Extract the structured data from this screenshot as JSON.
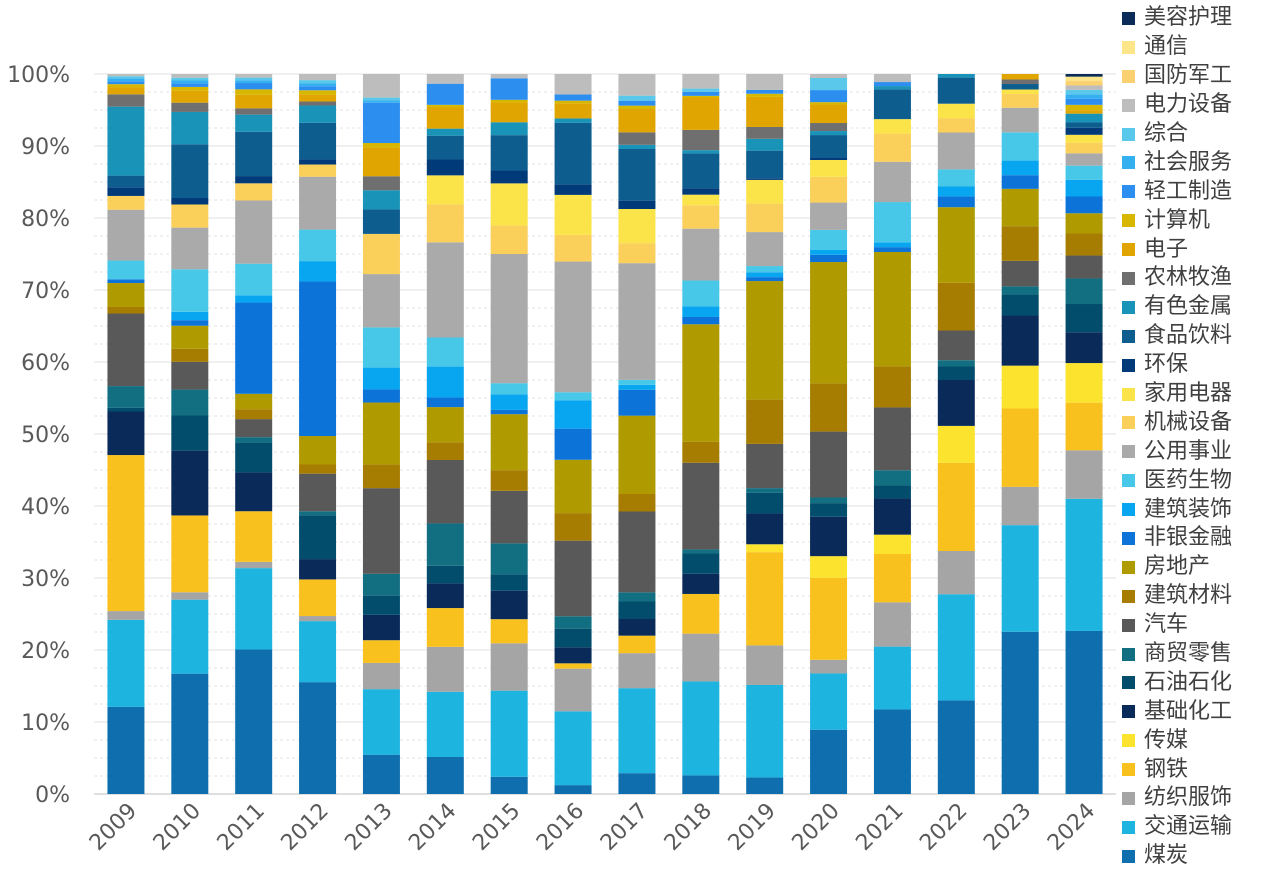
{
  "chart_data": {
    "type": "bar",
    "stacked": true,
    "percent": true,
    "title": "",
    "xlabel": "",
    "ylabel": "",
    "ylim": [
      0,
      100
    ],
    "y_ticks": [
      "0%",
      "10%",
      "20%",
      "30%",
      "40%",
      "50%",
      "60%",
      "70%",
      "80%",
      "90%",
      "100%"
    ],
    "y_tick_values": [
      0,
      10,
      20,
      30,
      40,
      50,
      60,
      70,
      80,
      90,
      100
    ],
    "categories": [
      "2009",
      "2010",
      "2011",
      "2012",
      "2013",
      "2014",
      "2015",
      "2016",
      "2017",
      "2018",
      "2019",
      "2020",
      "2021",
      "2022",
      "2023",
      "2024"
    ],
    "grid": true,
    "legend_position": "right",
    "series": [
      {
        "name": "煤炭",
        "color": "#0E6EAE",
        "values": [
          12,
          13,
          16,
          11,
          4.5,
          4.2,
          2,
          1,
          2.5,
          2.3,
          2.1,
          8,
          10.5,
          10.4,
          17.8,
          18.5
        ]
      },
      {
        "name": "交通运输",
        "color": "#1EB4E0",
        "values": [
          12,
          8,
          9,
          6,
          7.5,
          7.4,
          10,
          8.3,
          10.2,
          11.6,
          11.7,
          7,
          7.8,
          11.8,
          11.7,
          15
        ]
      },
      {
        "name": "纺织服饰",
        "color": "#A5A5A5",
        "values": [
          1.2,
          0.8,
          0.7,
          0.5,
          3,
          5.1,
          5.5,
          4.8,
          4.2,
          5.9,
          5,
          1.7,
          5.5,
          4.8,
          4.2,
          5.5
        ]
      },
      {
        "name": "钢铁",
        "color": "#F9C11E",
        "values": [
          21.5,
          8.3,
          5.6,
          3.6,
          2.6,
          4.4,
          2.8,
          0.6,
          2.1,
          4.9,
          11.8,
          10.2,
          6,
          9.8,
          8.6,
          5.4
        ]
      },
      {
        "name": "传媒",
        "color": "#FBE32E",
        "values": [
          0,
          0,
          0,
          0,
          0,
          0,
          0,
          0,
          0,
          0,
          1,
          2.7,
          2.4,
          4.1,
          4.7,
          4.5
        ]
      },
      {
        "name": "基础化工",
        "color": "#0A2B5A",
        "values": [
          6,
          7,
          4.3,
          2,
          2.9,
          2.8,
          3.3,
          1.8,
          2,
          2.5,
          3.9,
          4.9,
          4.5,
          5.1,
          5.5,
          3.5
        ]
      },
      {
        "name": "石油石化",
        "color": "#024D6C",
        "values": [
          0.5,
          3.8,
          3.3,
          4.3,
          2.2,
          2,
          1.9,
          2.1,
          2.1,
          2.5,
          2.6,
          1.7,
          1.6,
          1.5,
          2.3,
          3.2
        ]
      },
      {
        "name": "商贸零售",
        "color": "#126F82",
        "values": [
          3,
          2.8,
          0.6,
          0.4,
          2.5,
          4.8,
          3.6,
          1.4,
          1.1,
          0.5,
          0.6,
          0.7,
          1.9,
          0.7,
          0.9,
          2.9
        ]
      },
      {
        "name": "汽车",
        "color": "#595959",
        "values": [
          10,
          3,
          2,
          3.7,
          9.8,
          7.2,
          6.1,
          8.5,
          9.7,
          10.7,
          5.6,
          8.2,
          7.8,
          3.3,
          2.8,
          2.6
        ]
      },
      {
        "name": "建筑材料",
        "color": "#A67D00",
        "values": [
          0.9,
          1.4,
          1.1,
          0.9,
          2.7,
          2,
          2.4,
          3.1,
          2.1,
          2.6,
          5.6,
          6,
          5.1,
          5.3,
          3.8,
          2.5
        ]
      },
      {
        "name": "房地产",
        "color": "#AF9A00",
        "values": [
          3.3,
          2.5,
          1.7,
          2.8,
          7.1,
          4,
          6.5,
          6,
          9.4,
          14.5,
          15,
          15.1,
          14.2,
          8.4,
          4.1,
          2.3
        ]
      },
      {
        "name": "非银金融",
        "color": "#0C74D9",
        "values": [
          0.5,
          0.6,
          10.1,
          15.2,
          1.5,
          1.1,
          0.5,
          3.5,
          3.1,
          0.9,
          0.5,
          0.9,
          0.6,
          1.2,
          1.5,
          1.9
        ]
      },
      {
        "name": "建筑装饰",
        "color": "#08A6F0",
        "values": [
          0,
          0.9,
          0.8,
          2,
          2.5,
          3.5,
          1.8,
          3.2,
          0.6,
          1.3,
          0.6,
          0.6,
          0.6,
          1.1,
          1.6,
          1.9
        ]
      },
      {
        "name": "医药生物",
        "color": "#48C8E8",
        "values": [
          2.6,
          4.6,
          3.5,
          3.1,
          4.6,
          3.3,
          1.3,
          0.9,
          0.6,
          3.2,
          0.8,
          2.5,
          5,
          1.9,
          3.1,
          1.6
        ]
      },
      {
        "name": "公用事业",
        "color": "#AAAAAA",
        "values": [
          7,
          4.5,
          7,
          5.2,
          6.1,
          10.8,
          15,
          14.7,
          14,
          6.4,
          4.3,
          3.4,
          5,
          4.1,
          2.7,
          1.4
        ]
      },
      {
        "name": "机械设备",
        "color": "#FAD05A",
        "values": [
          1.9,
          2.5,
          1.9,
          1.2,
          4.6,
          4.3,
          3.3,
          3,
          2.4,
          2.9,
          3.6,
          3.2,
          3.5,
          1.6,
          1.5,
          1.2
        ]
      },
      {
        "name": "家用电器",
        "color": "#FBE34A",
        "values": [
          0,
          0,
          0,
          0,
          0,
          3.3,
          4.9,
          4.5,
          4.1,
          1.3,
          3,
          2.1,
          1.8,
          1.6,
          0.5,
          0.9
        ]
      },
      {
        "name": "环保",
        "color": "#003A78",
        "values": [
          1.2,
          0.7,
          0.8,
          0.5,
          0,
          1.8,
          1.5,
          1.2,
          1,
          0.8,
          0.2,
          0.3,
          0,
          0,
          0,
          0.8
        ]
      },
      {
        "name": "食品饮料",
        "color": "#0D5D8F",
        "values": [
          1.6,
          5.8,
          4.9,
          3.6,
          2.8,
          2.7,
          4.1,
          6.9,
          6.2,
          4.3,
          3.5,
          2.8,
          3.7,
          2.9,
          0.6,
          0.6
        ]
      },
      {
        "name": "有色金属",
        "color": "#1A93B8",
        "values": [
          9.5,
          3.5,
          1.9,
          1.7,
          2.2,
          0.8,
          1.5,
          0.5,
          0.5,
          0.4,
          1.5,
          0.5,
          0.4,
          0.4,
          0,
          1
        ]
      },
      {
        "name": "农林牧渔",
        "color": "#6F6F6F",
        "values": [
          1.7,
          1,
          0.7,
          0.4,
          1.6,
          0,
          0,
          0,
          1.5,
          2.5,
          1.5,
          1,
          0,
          0,
          0.5,
          0
        ]
      },
      {
        "name": "电子",
        "color": "#E0A500",
        "values": [
          1,
          1.3,
          1.5,
          0.7,
          3.3,
          2.4,
          2.3,
          1.7,
          2.8,
          4,
          3.8,
          2.3,
          0,
          0,
          0.6,
          0.4
        ]
      },
      {
        "name": "计算机",
        "color": "#D8B700",
        "values": [
          0.4,
          0.4,
          0.6,
          0.4,
          0.5,
          0.3,
          0.3,
          0.3,
          0.4,
          0.2,
          0.4,
          0.3,
          0,
          0,
          0,
          0.6
        ]
      },
      {
        "name": "轻工制造",
        "color": "#2C8FEF",
        "values": [
          0.4,
          0.4,
          0.7,
          0.4,
          4.6,
          2.4,
          2.5,
          0.7,
          0.6,
          0.5,
          0.5,
          1.5,
          0.5,
          0,
          0,
          0.7
        ]
      },
      {
        "name": "社会服务",
        "color": "#34B0F0",
        "values": [
          0.4,
          0.3,
          0.3,
          0.3,
          0.3,
          0,
          0,
          0,
          0,
          0,
          0,
          0,
          0,
          0,
          0,
          0.5
        ]
      },
      {
        "name": "综合",
        "color": "#59C8EA",
        "values": [
          0.3,
          0.3,
          0.3,
          0.3,
          0.3,
          0,
          0,
          0,
          0.6,
          0.4,
          0,
          1.5,
          0,
          0,
          0,
          0.5
        ]
      },
      {
        "name": "电力设备",
        "color": "#BDBDBD",
        "values": [
          0.3,
          0.4,
          0.4,
          0.6,
          2.7,
          1.1,
          0.5,
          2.3,
          2.6,
          1.8,
          2,
          0.5,
          1,
          0,
          0,
          0.5
        ]
      },
      {
        "name": "国防军工",
        "color": "#FAD070",
        "values": [
          0,
          0,
          0,
          0,
          0,
          0,
          0,
          0,
          0,
          0,
          0,
          0,
          0,
          0,
          0,
          0.5
        ]
      },
      {
        "name": "通信",
        "color": "#FDE68A",
        "values": [
          0,
          0,
          0,
          0,
          0,
          0,
          0,
          0,
          0,
          0,
          0,
          0,
          0,
          0,
          0,
          0.5
        ]
      },
      {
        "name": "美容护理",
        "color": "#0B2C58",
        "values": [
          0,
          0,
          0,
          0,
          0,
          0,
          0,
          0,
          0,
          0,
          0,
          0,
          0,
          0,
          0,
          0.3
        ]
      }
    ]
  }
}
